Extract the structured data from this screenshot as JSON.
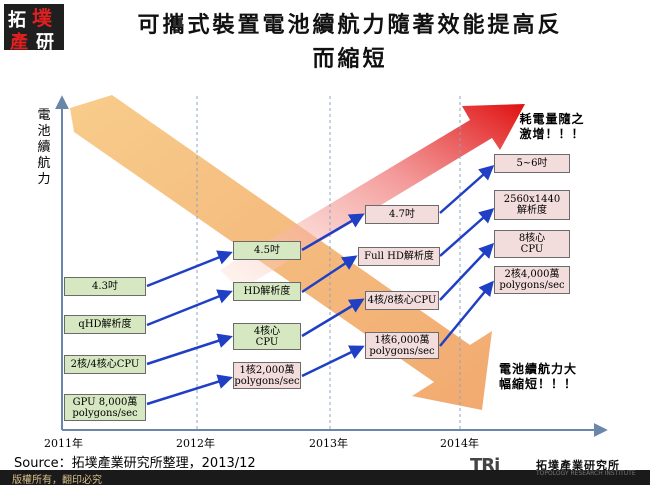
{
  "logo": {
    "line1": "拓",
    "line2": "墣",
    "line3": "產",
    "line4": "研"
  },
  "title": {
    "line1": "可攜式裝置電池續航力隨著效能提高反",
    "line2": "而縮短"
  },
  "y_label": [
    "電",
    "池",
    "續",
    "航",
    "力"
  ],
  "years": [
    "2011年",
    "2012年",
    "2013年",
    "2014年"
  ],
  "boxes": {
    "c2011_screen": "4.3吋",
    "c2011_res": "qHD解析度",
    "c2011_cpu": "2核/4核心CPU",
    "c2011_gpu_1": "GPU 8,000萬",
    "c2011_gpu_2": "polygons/sec",
    "c2012_screen": "4.5吋",
    "c2012_res": "HD解析度",
    "c2012_cpu_1": "4核心",
    "c2012_cpu_2": "CPU",
    "c2012_gpu_1": "1核2,000萬",
    "c2012_gpu_2": "polygons/sec",
    "c2013_screen": "4.7吋",
    "c2013_res": "Full HD解析度",
    "c2013_cpu": "4核/8核心CPU",
    "c2013_gpu_1": "1核6,000萬",
    "c2013_gpu_2": "polygons/sec",
    "c2014_screen": "5~6吋",
    "c2014_res_1": "2560x1440",
    "c2014_res_2": "解析度",
    "c2014_cpu_1": "8核心",
    "c2014_cpu_2": "CPU",
    "c2014_gpu_1": "2核4,000萬",
    "c2014_gpu_2": "polygons/sec"
  },
  "notes": {
    "power_1": "耗電量隨之",
    "power_2": "激增！！！",
    "battery_1": "電池續航力大",
    "battery_2": "幅縮短！！！"
  },
  "source": "Source：拓墣產業研究所整理，2013/12",
  "footer": "版權所有，翻印必究",
  "brand": {
    "mark": "TRi",
    "name": "拓墣產業研究所",
    "sub": "TOPOLOGY RESEARCH INSTITUTE"
  },
  "colors": {
    "green_box": "#d6e8c2",
    "pink_box": "#f2dcdc",
    "arrow_blue": "#1f3fc4",
    "rising_arrow": "#e02020",
    "falling_arrow": "#f0a050"
  }
}
